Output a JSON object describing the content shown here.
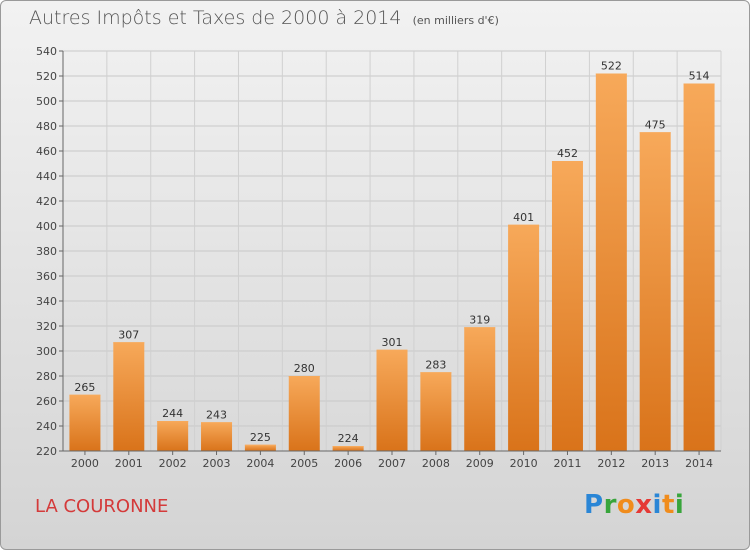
{
  "title": "Autres Impôts et Taxes de 2000 à 2014",
  "title_unit": "(en milliers d'€)",
  "place": "LA COURONNE",
  "logo": {
    "letters": [
      "P",
      "r",
      "o",
      "x",
      "i",
      "t",
      "i"
    ],
    "colors": [
      "#2a86d6",
      "#38a53b",
      "#f08c1c",
      "#e53935",
      "#2a86d6",
      "#f08c1c",
      "#38a53b"
    ]
  },
  "chart_data": {
    "type": "bar",
    "title": "Autres Impôts et Taxes de 2000 à 2014",
    "subtitle": "(en milliers d'€)",
    "xlabel": "",
    "ylabel": "",
    "categories": [
      "2000",
      "2001",
      "2002",
      "2003",
      "2004",
      "2005",
      "2006",
      "2007",
      "2008",
      "2009",
      "2010",
      "2011",
      "2012",
      "2013",
      "2014"
    ],
    "values": [
      265,
      307,
      244,
      243,
      225,
      280,
      224,
      301,
      283,
      319,
      401,
      452,
      522,
      475,
      514
    ],
    "ylim": [
      220,
      540
    ],
    "yticks": [
      220,
      240,
      260,
      280,
      300,
      320,
      340,
      360,
      380,
      400,
      420,
      440,
      460,
      480,
      500,
      520,
      540
    ],
    "grid": true,
    "legend": "none",
    "bar_color": "#f08c2e",
    "bar_color_light": "#f7a95a",
    "bar_color_dark": "#d9731a"
  }
}
